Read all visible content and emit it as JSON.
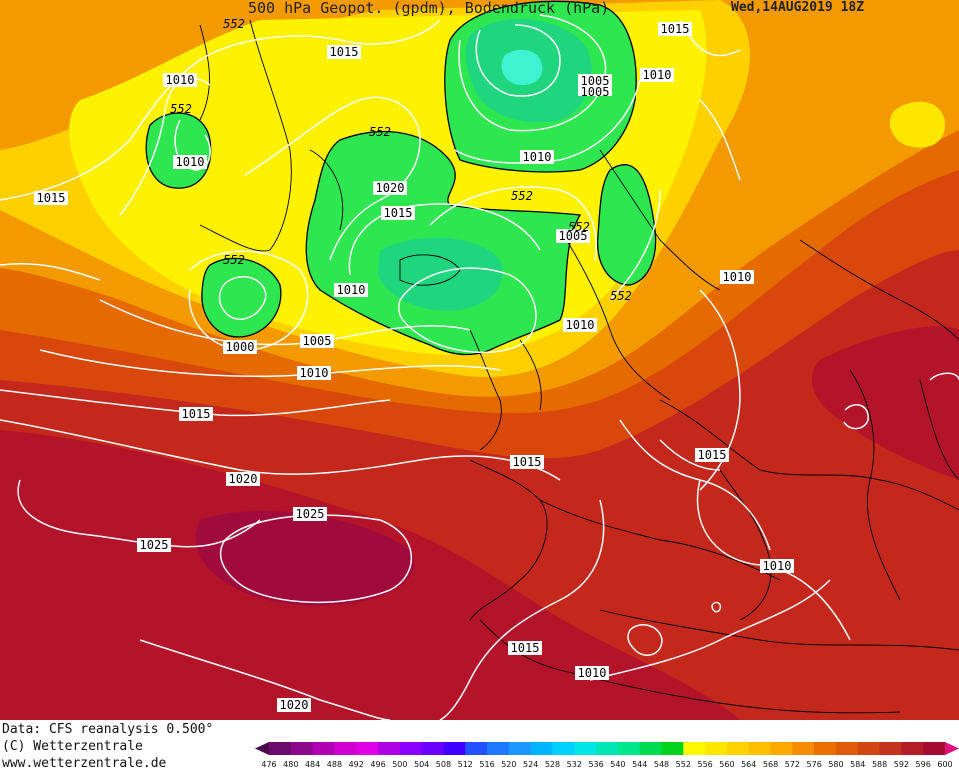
{
  "header": {
    "title": "500 hPa Geopot. (gpdm), Bodendruck (hPa)",
    "datetime": "Wed,14AUG2019 18Z"
  },
  "footer": {
    "data_source": "Data: CFS reanalysis 0.500°",
    "copyright": "(C) Wetterzentrale",
    "url": "www.wetterzentrale.de"
  },
  "legend": {
    "levels": [
      "476",
      "480",
      "484",
      "488",
      "492",
      "496",
      "500",
      "504",
      "508",
      "512",
      "516",
      "520",
      "524",
      "528",
      "532",
      "536",
      "540",
      "544",
      "548",
      "552",
      "556",
      "560",
      "564",
      "568",
      "572",
      "576",
      "580",
      "584",
      "588",
      "592",
      "596",
      "600"
    ],
    "colors": [
      "#4b0a4b",
      "#6a0a6a",
      "#8b0a8b",
      "#b000b0",
      "#d000d0",
      "#e000e6",
      "#b000e6",
      "#8c00ff",
      "#6a00ff",
      "#4000ff",
      "#2050ff",
      "#1e78ff",
      "#1e96ff",
      "#00b4ff",
      "#00d2ff",
      "#00e6e6",
      "#00e6b4",
      "#00e68c",
      "#00dc50",
      "#00d21e",
      "#fffa00",
      "#ffe600",
      "#ffd200",
      "#ffbe00",
      "#ffaa00",
      "#f58c00",
      "#eb6e00",
      "#e05a0a",
      "#d24614",
      "#c3321e",
      "#b41e28",
      "#a50a32",
      "#e0127c"
    ]
  },
  "map_labels": {
    "isobars": [
      {
        "text": "1015"
      },
      {
        "text": "1010"
      },
      {
        "text": "1005"
      },
      {
        "text": "1005"
      },
      {
        "text": "1010"
      },
      {
        "text": "1010"
      },
      {
        "text": "1015"
      },
      {
        "text": "1010"
      },
      {
        "text": "1015"
      },
      {
        "text": "1020"
      },
      {
        "text": "1015"
      },
      {
        "text": "1005"
      },
      {
        "text": "1010"
      },
      {
        "text": "1010"
      },
      {
        "text": "1000"
      },
      {
        "text": "1005"
      },
      {
        "text": "1010"
      },
      {
        "text": "1010"
      },
      {
        "text": "1015"
      },
      {
        "text": "1015"
      },
      {
        "text": "1015"
      },
      {
        "text": "1020"
      },
      {
        "text": "1025"
      },
      {
        "text": "1025"
      },
      {
        "text": "1010"
      },
      {
        "text": "1015"
      },
      {
        "text": "1010"
      },
      {
        "text": "1020"
      }
    ],
    "geopotential": [
      {
        "text": "552"
      },
      {
        "text": "552"
      },
      {
        "text": "552"
      },
      {
        "text": "552"
      },
      {
        "text": "552"
      },
      {
        "text": "552"
      },
      {
        "text": "552"
      }
    ]
  },
  "colors": {
    "orange": "#f29a00",
    "deep_orange": "#e56a00",
    "red_orange": "#d8480c",
    "red": "#c4281c",
    "crimson": "#b3142a",
    "yellow": "#fff200",
    "gold": "#ffd000",
    "green": "#2ee650",
    "green_mid": "#1fd67e",
    "cyan": "#3ff2d0",
    "isobar": "#ffffff",
    "coast": "#000000"
  }
}
